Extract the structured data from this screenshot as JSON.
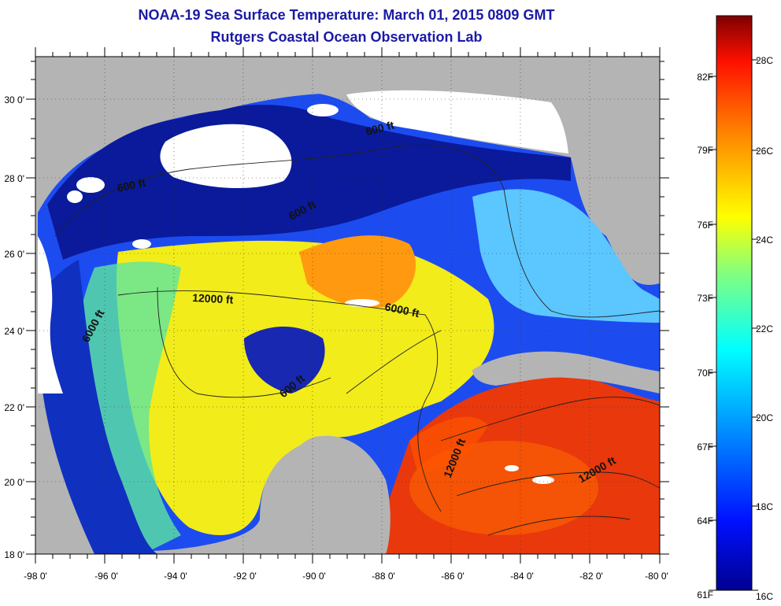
{
  "header": {
    "title": "NOAA-19 Sea Surface Temperature:  March 01, 2015 0809 GMT",
    "subtitle": "Rutgers Coastal Ocean Observation Lab"
  },
  "map": {
    "lon_range": [
      -98,
      -80
    ],
    "lat_range": [
      18,
      31
    ],
    "lon_ticks": [
      "-98 0'",
      "-96 0'",
      "-94 0'",
      "-92 0'",
      "-90 0'",
      "-88 0'",
      "-86 0'",
      "-84 0'",
      "-82 0'",
      "-80 0'"
    ],
    "lat_ticks": [
      "18 0'",
      "20 0'",
      "22 0'",
      "24 0'",
      "26 0'",
      "28 0'",
      "30 0'"
    ],
    "contour_labels": [
      "600 ft",
      "600 ft",
      "600 ft",
      "12000 ft",
      "6000 ft",
      "6000 ft",
      "600 ft",
      "12000 ft",
      "12000 ft"
    ],
    "colors": {
      "land": "#b4b4b4",
      "cloud": "#ffffff",
      "cold": "#0a1a9a",
      "warm": "#e8300a"
    }
  },
  "colorbar": {
    "fahrenheit_labels": [
      "82F",
      "79F",
      "76F",
      "73F",
      "70F",
      "67F",
      "64F",
      "61F"
    ],
    "celsius_labels": [
      "28C",
      "26C",
      "24C",
      "22C",
      "20C",
      "18C",
      "16C"
    ],
    "range_c": [
      16,
      29
    ]
  }
}
